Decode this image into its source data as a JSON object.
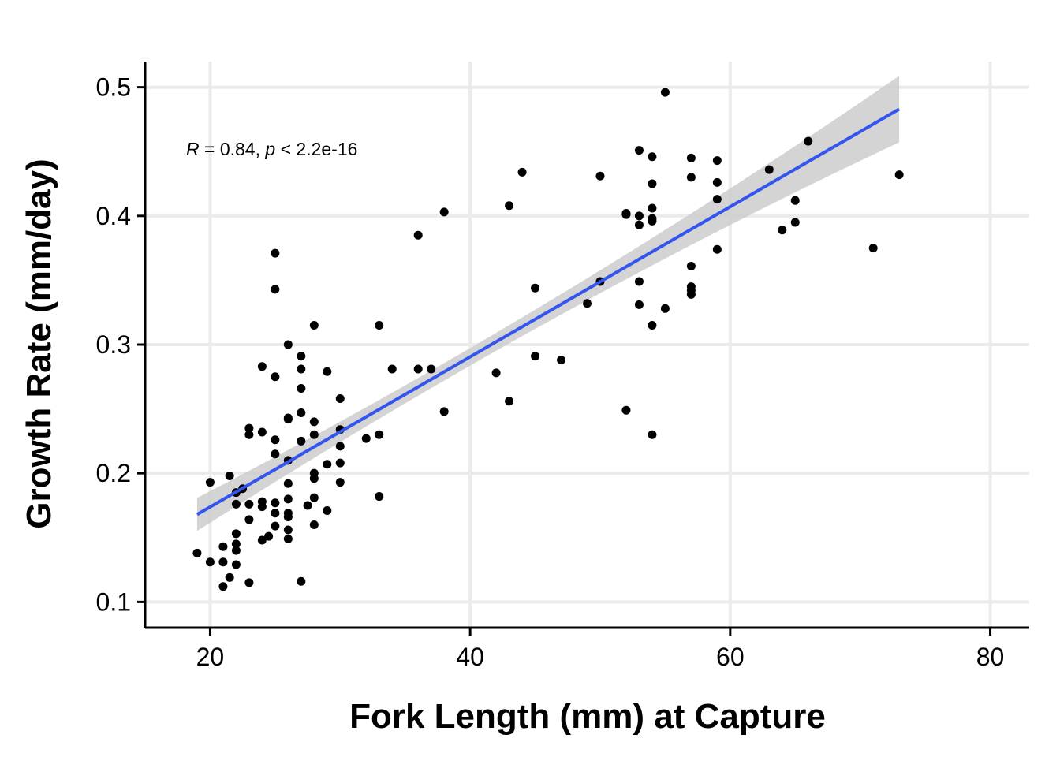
{
  "chart_data": {
    "type": "scatter",
    "xlabel": "Fork Length (mm) at Capture",
    "ylabel": "Growth Rate (mm/day)",
    "xlim": [
      15,
      83
    ],
    "ylim": [
      0.08,
      0.52
    ],
    "x_ticks": [
      20,
      40,
      60,
      80
    ],
    "y_ticks": [
      0.1,
      0.2,
      0.3,
      0.4,
      0.5
    ],
    "x_tick_labels": [
      "20",
      "40",
      "60",
      "80"
    ],
    "y_tick_labels": [
      "0.1",
      "0.2",
      "0.3",
      "0.4",
      "0.5"
    ],
    "grid": true,
    "annotation": {
      "r_symbol": "R",
      "r_text": " = 0.84, ",
      "p_symbol": "p",
      "p_text": " < 2.2e-16"
    },
    "fit_line": {
      "type": "linear",
      "x_range": [
        19,
        73
      ],
      "y_start": 0.168,
      "y_end": 0.483,
      "ci_color": "#cccccc",
      "line_color": "#3355ee"
    },
    "point_color": "#000000",
    "points": [
      [
        19,
        0.138
      ],
      [
        20,
        0.193
      ],
      [
        20,
        0.131
      ],
      [
        21,
        0.143
      ],
      [
        21,
        0.131
      ],
      [
        21,
        0.112
      ],
      [
        21.5,
        0.198
      ],
      [
        21.5,
        0.119
      ],
      [
        22,
        0.185
      ],
      [
        22,
        0.176
      ],
      [
        22,
        0.153
      ],
      [
        22,
        0.145
      ],
      [
        22,
        0.14
      ],
      [
        22,
        0.129
      ],
      [
        22.5,
        0.188
      ],
      [
        23,
        0.235
      ],
      [
        23,
        0.23
      ],
      [
        23,
        0.176
      ],
      [
        23,
        0.164
      ],
      [
        23,
        0.115
      ],
      [
        24,
        0.283
      ],
      [
        24,
        0.232
      ],
      [
        24,
        0.178
      ],
      [
        24,
        0.174
      ],
      [
        24,
        0.148
      ],
      [
        24.5,
        0.151
      ],
      [
        25,
        0.371
      ],
      [
        25,
        0.343
      ],
      [
        25,
        0.275
      ],
      [
        25,
        0.226
      ],
      [
        25,
        0.215
      ],
      [
        25,
        0.177
      ],
      [
        25,
        0.169
      ],
      [
        25,
        0.159
      ],
      [
        26,
        0.3
      ],
      [
        26,
        0.243
      ],
      [
        26,
        0.242
      ],
      [
        26,
        0.21
      ],
      [
        26,
        0.192
      ],
      [
        26,
        0.18
      ],
      [
        26,
        0.169
      ],
      [
        26,
        0.166
      ],
      [
        26,
        0.156
      ],
      [
        26,
        0.149
      ],
      [
        27,
        0.291
      ],
      [
        27,
        0.281
      ],
      [
        27,
        0.266
      ],
      [
        27,
        0.247
      ],
      [
        27,
        0.225
      ],
      [
        27,
        0.116
      ],
      [
        27.5,
        0.175
      ],
      [
        28,
        0.315
      ],
      [
        28,
        0.24
      ],
      [
        28,
        0.23
      ],
      [
        28,
        0.2
      ],
      [
        28,
        0.196
      ],
      [
        28,
        0.181
      ],
      [
        28,
        0.16
      ],
      [
        29,
        0.279
      ],
      [
        29,
        0.207
      ],
      [
        29,
        0.171
      ],
      [
        30,
        0.258
      ],
      [
        30,
        0.234
      ],
      [
        30,
        0.221
      ],
      [
        30,
        0.208
      ],
      [
        30,
        0.193
      ],
      [
        32,
        0.227
      ],
      [
        33,
        0.315
      ],
      [
        33,
        0.23
      ],
      [
        33,
        0.182
      ],
      [
        34,
        0.281
      ],
      [
        36,
        0.385
      ],
      [
        36,
        0.281
      ],
      [
        37,
        0.281
      ],
      [
        38,
        0.403
      ],
      [
        38,
        0.248
      ],
      [
        42,
        0.278
      ],
      [
        43,
        0.408
      ],
      [
        43,
        0.256
      ],
      [
        44,
        0.434
      ],
      [
        45,
        0.344
      ],
      [
        45,
        0.291
      ],
      [
        47,
        0.288
      ],
      [
        49,
        0.332
      ],
      [
        50,
        0.431
      ],
      [
        50,
        0.349
      ],
      [
        52,
        0.402
      ],
      [
        52,
        0.401
      ],
      [
        52,
        0.249
      ],
      [
        53,
        0.451
      ],
      [
        53,
        0.4
      ],
      [
        53,
        0.393
      ],
      [
        53,
        0.349
      ],
      [
        53,
        0.331
      ],
      [
        54,
        0.446
      ],
      [
        54,
        0.425
      ],
      [
        54,
        0.406
      ],
      [
        54,
        0.398
      ],
      [
        54,
        0.396
      ],
      [
        54,
        0.315
      ],
      [
        54,
        0.23
      ],
      [
        55,
        0.496
      ],
      [
        55,
        0.328
      ],
      [
        57,
        0.445
      ],
      [
        57,
        0.43
      ],
      [
        57,
        0.361
      ],
      [
        57,
        0.345
      ],
      [
        57,
        0.342
      ],
      [
        57,
        0.339
      ],
      [
        59,
        0.443
      ],
      [
        59,
        0.426
      ],
      [
        59,
        0.413
      ],
      [
        59,
        0.374
      ],
      [
        63,
        0.436
      ],
      [
        64,
        0.389
      ],
      [
        65,
        0.412
      ],
      [
        65,
        0.395
      ],
      [
        66,
        0.458
      ],
      [
        71,
        0.375
      ],
      [
        73,
        0.432
      ]
    ]
  }
}
